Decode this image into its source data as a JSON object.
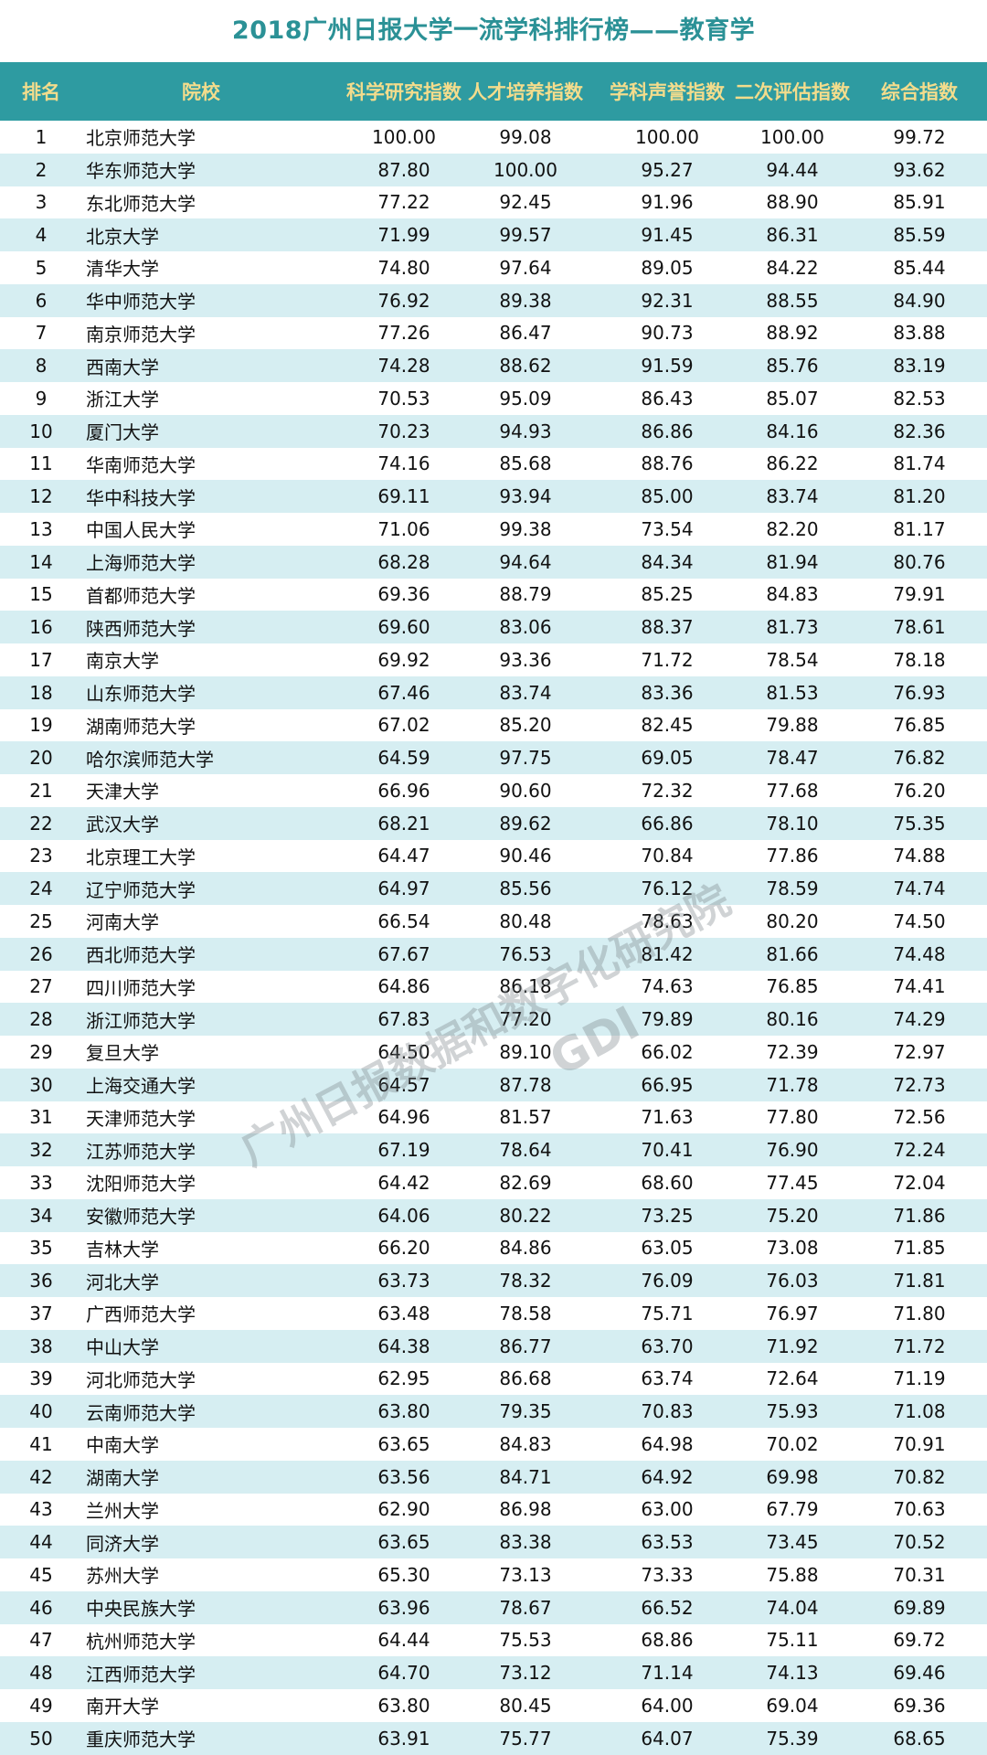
{
  "title": "2018广州日报大学一流学科排行榜——教育学",
  "colors": {
    "header_bg": "#2e9ba1",
    "header_text": "#f3dc8c",
    "title": "#2b9196",
    "alt_row": "#d6eef2"
  },
  "watermark": {
    "text": "广州日报数据和数字化研究院",
    "logo": "GDI"
  },
  "columns": [
    "排名",
    "院校",
    "科学研究指数",
    "人才培养指数",
    "学科声誉指数",
    "二次评估指数",
    "综合指数"
  ],
  "rows": [
    [
      "1",
      "北京师范大学",
      "100.00",
      "99.08",
      "100.00",
      "100.00",
      "99.72"
    ],
    [
      "2",
      "华东师范大学",
      "87.80",
      "100.00",
      "95.27",
      "94.44",
      "93.62"
    ],
    [
      "3",
      "东北师范大学",
      "77.22",
      "92.45",
      "91.96",
      "88.90",
      "85.91"
    ],
    [
      "4",
      "北京大学",
      "71.99",
      "99.57",
      "91.45",
      "86.31",
      "85.59"
    ],
    [
      "5",
      "清华大学",
      "74.80",
      "97.64",
      "89.05",
      "84.22",
      "85.44"
    ],
    [
      "6",
      "华中师范大学",
      "76.92",
      "89.38",
      "92.31",
      "88.55",
      "84.90"
    ],
    [
      "7",
      "南京师范大学",
      "77.26",
      "86.47",
      "90.73",
      "88.92",
      "83.88"
    ],
    [
      "8",
      "西南大学",
      "74.28",
      "88.62",
      "91.59",
      "85.76",
      "83.19"
    ],
    [
      "9",
      "浙江大学",
      "70.53",
      "95.09",
      "86.43",
      "85.07",
      "82.53"
    ],
    [
      "10",
      "厦门大学",
      "70.23",
      "94.93",
      "86.86",
      "84.16",
      "82.36"
    ],
    [
      "11",
      "华南师范大学",
      "74.16",
      "85.68",
      "88.76",
      "86.22",
      "81.74"
    ],
    [
      "12",
      "华中科技大学",
      "69.11",
      "93.94",
      "85.00",
      "83.74",
      "81.20"
    ],
    [
      "13",
      "中国人民大学",
      "71.06",
      "99.38",
      "73.54",
      "82.20",
      "81.17"
    ],
    [
      "14",
      "上海师范大学",
      "68.28",
      "94.64",
      "84.34",
      "81.94",
      "80.76"
    ],
    [
      "15",
      "首都师范大学",
      "69.36",
      "88.79",
      "85.25",
      "84.83",
      "79.91"
    ],
    [
      "16",
      "陕西师范大学",
      "69.60",
      "83.06",
      "88.37",
      "81.73",
      "78.61"
    ],
    [
      "17",
      "南京大学",
      "69.92",
      "93.36",
      "71.72",
      "78.54",
      "78.18"
    ],
    [
      "18",
      "山东师范大学",
      "67.46",
      "83.74",
      "83.36",
      "81.53",
      "76.93"
    ],
    [
      "19",
      "湖南师范大学",
      "67.02",
      "85.20",
      "82.45",
      "79.88",
      "76.85"
    ],
    [
      "20",
      "哈尔滨师范大学",
      "64.59",
      "97.75",
      "69.05",
      "78.47",
      "76.82"
    ],
    [
      "21",
      "天津大学",
      "66.96",
      "90.60",
      "72.32",
      "77.68",
      "76.20"
    ],
    [
      "22",
      "武汉大学",
      "68.21",
      "89.62",
      "66.86",
      "78.10",
      "75.35"
    ],
    [
      "23",
      "北京理工大学",
      "64.47",
      "90.46",
      "70.84",
      "77.86",
      "74.88"
    ],
    [
      "24",
      "辽宁师范大学",
      "64.97",
      "85.56",
      "76.12",
      "78.59",
      "74.74"
    ],
    [
      "25",
      "河南大学",
      "66.54",
      "80.48",
      "78.63",
      "80.20",
      "74.50"
    ],
    [
      "26",
      "西北师范大学",
      "67.67",
      "76.53",
      "81.42",
      "81.66",
      "74.48"
    ],
    [
      "27",
      "四川师范大学",
      "64.86",
      "86.18",
      "74.63",
      "76.85",
      "74.41"
    ],
    [
      "28",
      "浙江师范大学",
      "67.83",
      "77.20",
      "79.89",
      "80.16",
      "74.29"
    ],
    [
      "29",
      "复旦大学",
      "64.50",
      "89.10",
      "66.02",
      "72.39",
      "72.97"
    ],
    [
      "30",
      "上海交通大学",
      "64.57",
      "87.78",
      "66.95",
      "71.78",
      "72.73"
    ],
    [
      "31",
      "天津师范大学",
      "64.96",
      "81.57",
      "71.63",
      "77.80",
      "72.56"
    ],
    [
      "32",
      "江苏师范大学",
      "67.19",
      "78.64",
      "70.41",
      "76.90",
      "72.24"
    ],
    [
      "33",
      "沈阳师范大学",
      "64.42",
      "82.69",
      "68.60",
      "77.45",
      "72.04"
    ],
    [
      "34",
      "安徽师范大学",
      "64.06",
      "80.22",
      "73.25",
      "75.20",
      "71.86"
    ],
    [
      "35",
      "吉林大学",
      "66.20",
      "84.86",
      "63.05",
      "73.08",
      "71.85"
    ],
    [
      "36",
      "河北大学",
      "63.73",
      "78.32",
      "76.09",
      "76.03",
      "71.81"
    ],
    [
      "37",
      "广西师范大学",
      "63.48",
      "78.58",
      "75.71",
      "76.97",
      "71.80"
    ],
    [
      "38",
      "中山大学",
      "64.38",
      "86.77",
      "63.70",
      "71.92",
      "71.72"
    ],
    [
      "39",
      "河北师范大学",
      "62.95",
      "86.68",
      "63.74",
      "72.64",
      "71.19"
    ],
    [
      "40",
      "云南师范大学",
      "63.80",
      "79.35",
      "70.83",
      "75.93",
      "71.08"
    ],
    [
      "41",
      "中南大学",
      "63.65",
      "84.83",
      "64.98",
      "70.02",
      "70.91"
    ],
    [
      "42",
      "湖南大学",
      "63.56",
      "84.71",
      "64.92",
      "69.98",
      "70.82"
    ],
    [
      "43",
      "兰州大学",
      "62.90",
      "86.98",
      "63.00",
      "67.79",
      "70.63"
    ],
    [
      "44",
      "同济大学",
      "63.65",
      "83.38",
      "63.53",
      "73.45",
      "70.52"
    ],
    [
      "45",
      "苏州大学",
      "65.30",
      "73.13",
      "73.33",
      "75.88",
      "70.31"
    ],
    [
      "46",
      "中央民族大学",
      "63.96",
      "78.67",
      "66.52",
      "74.04",
      "69.89"
    ],
    [
      "47",
      "杭州师范大学",
      "64.44",
      "75.53",
      "68.86",
      "75.11",
      "69.72"
    ],
    [
      "48",
      "江西师范大学",
      "64.70",
      "73.12",
      "71.14",
      "74.13",
      "69.46"
    ],
    [
      "49",
      "南开大学",
      "63.80",
      "80.45",
      "64.00",
      "69.04",
      "69.36"
    ],
    [
      "50",
      "重庆师范大学",
      "63.91",
      "75.77",
      "64.07",
      "75.39",
      "68.65"
    ]
  ]
}
